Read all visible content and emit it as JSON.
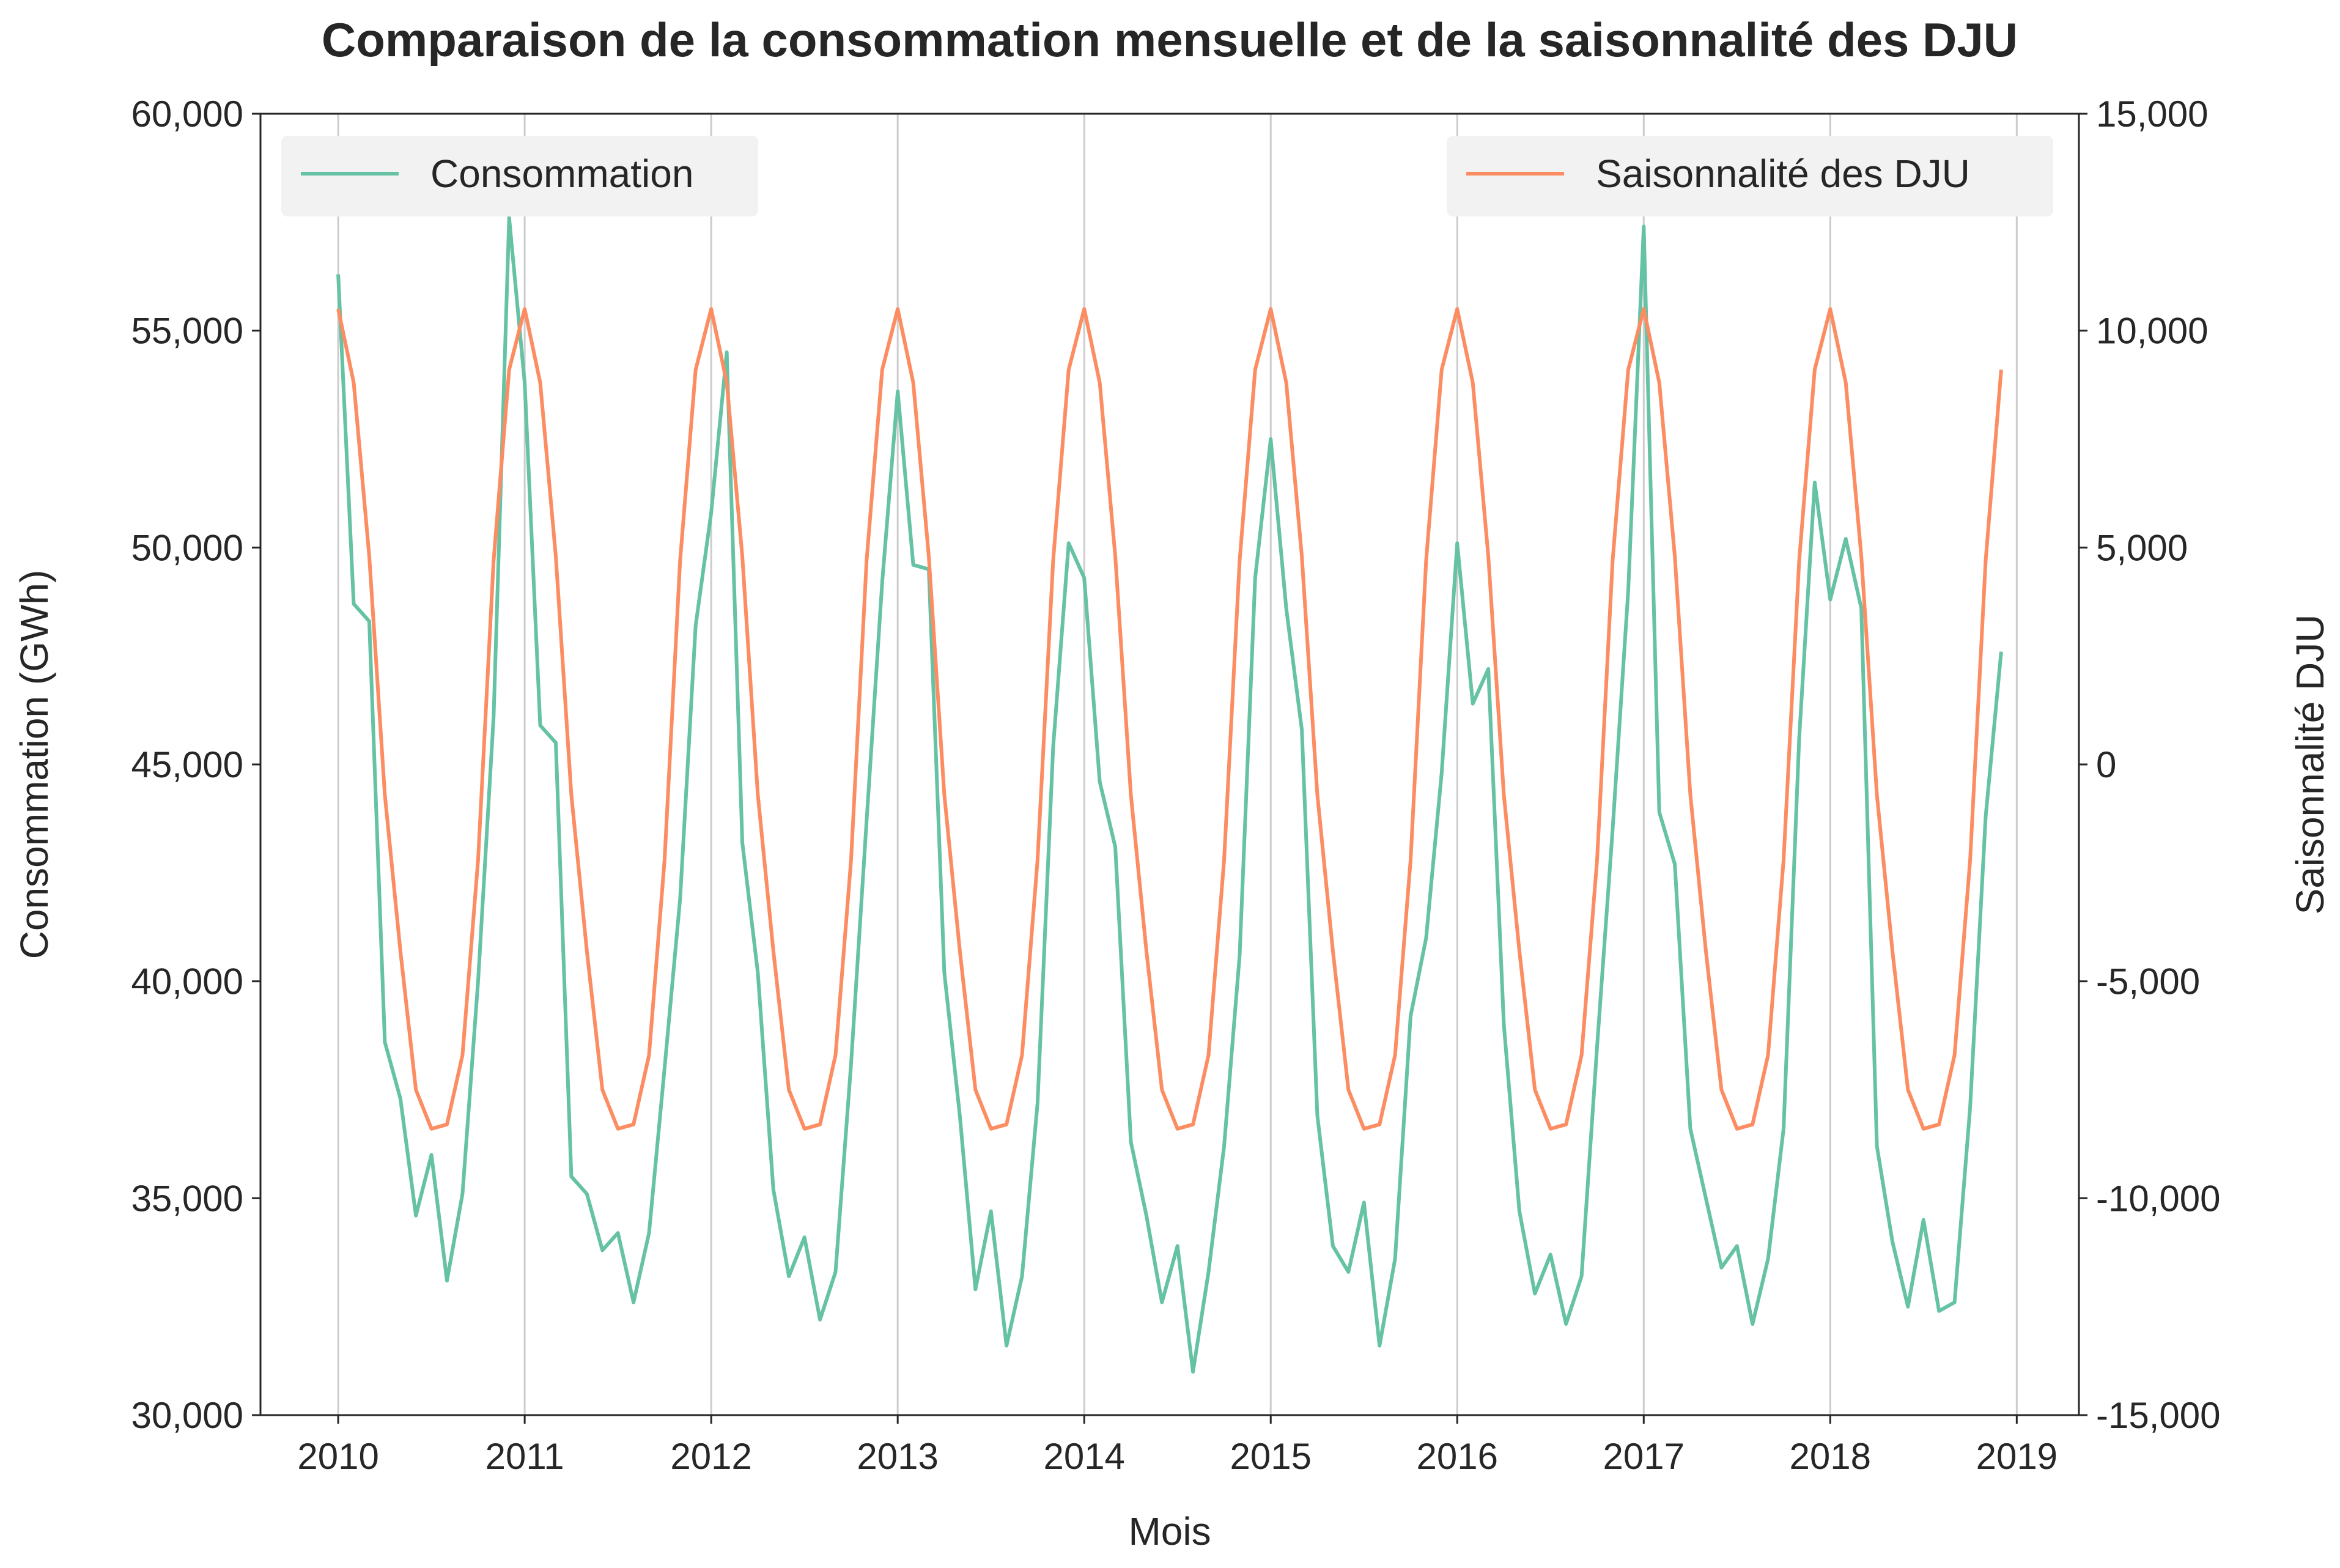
{
  "colors": {
    "consumption": "#66c2a5",
    "dju": "#fc8d62",
    "grid": "#cccccc",
    "axis": "#262626",
    "legend_bg": "#f2f2f2"
  },
  "chart_data": {
    "type": "line",
    "title": "Comparaison de la consommation mensuelle et de la saisonnalité des DJU",
    "xlabel": "Mois",
    "ylabel_left": "Consommation (GWh)",
    "ylabel_right": "Saisonnalité DJU",
    "x_ticks": [
      "2010",
      "2011",
      "2012",
      "2013",
      "2014",
      "2015",
      "2016",
      "2017",
      "2018",
      "2019"
    ],
    "y_left_ticks": [
      "30,000",
      "35,000",
      "40,000",
      "45,000",
      "50,000",
      "55,000",
      "60,000"
    ],
    "y_right_ticks": [
      "-15,000",
      "-10,000",
      "-5,000",
      "0",
      "5,000",
      "10,000",
      "15,000"
    ],
    "x_range": [
      "2009-08",
      "2019-05"
    ],
    "ylim_left": [
      30000,
      60000
    ],
    "ylim_right": [
      -15000,
      15000
    ],
    "grid": "vertical",
    "legend_left": "top-left",
    "legend_right": "top-right",
    "x_start": "2010-01",
    "x_step": "1 month",
    "series": [
      {
        "name": "Consommation",
        "axis": "left",
        "values": [
          56300,
          48700,
          48300,
          38600,
          37300,
          34600,
          36000,
          33100,
          35100,
          40000,
          46100,
          57600,
          53800,
          45900,
          45500,
          35500,
          35100,
          33800,
          34200,
          32600,
          34200,
          38000,
          41900,
          48200,
          50800,
          54500,
          43200,
          40200,
          35200,
          33200,
          34100,
          32200,
          33300,
          38100,
          43700,
          49200,
          53600,
          49600,
          49500,
          40200,
          36900,
          32900,
          34700,
          31600,
          33200,
          37200,
          45400,
          50100,
          49300,
          44600,
          43100,
          36300,
          34600,
          32600,
          33900,
          31000,
          33300,
          36200,
          40600,
          49300,
          52500,
          48600,
          45800,
          36900,
          33900,
          33300,
          34900,
          31600,
          33600,
          39200,
          41000,
          44800,
          50100,
          46400,
          47200,
          39000,
          34700,
          32800,
          33700,
          32100,
          33200,
          38500,
          43500,
          49000,
          57400,
          43900,
          42700,
          36600,
          35000,
          33400,
          33900,
          32100,
          33600,
          36600,
          45600,
          51500,
          48800,
          50200,
          48600,
          36200,
          34000,
          32500,
          34500,
          32400,
          32600,
          37100,
          43800,
          47600
        ]
      },
      {
        "name": "Saisonnalité des DJU",
        "axis": "right",
        "values": [
          10500,
          8800,
          4800,
          -700,
          -4300,
          -7500,
          -8400,
          -8300,
          -6700,
          -2200,
          4700,
          9100,
          10500,
          8800,
          4800,
          -700,
          -4300,
          -7500,
          -8400,
          -8300,
          -6700,
          -2200,
          4700,
          9100,
          10500,
          8800,
          4800,
          -700,
          -4300,
          -7500,
          -8400,
          -8300,
          -6700,
          -2200,
          4700,
          9100,
          10500,
          8800,
          4800,
          -700,
          -4300,
          -7500,
          -8400,
          -8300,
          -6700,
          -2200,
          4700,
          9100,
          10500,
          8800,
          4800,
          -700,
          -4300,
          -7500,
          -8400,
          -8300,
          -6700,
          -2200,
          4700,
          9100,
          10500,
          8800,
          4800,
          -700,
          -4300,
          -7500,
          -8400,
          -8300,
          -6700,
          -2200,
          4700,
          9100,
          10500,
          8800,
          4800,
          -700,
          -4300,
          -7500,
          -8400,
          -8300,
          -6700,
          -2200,
          4700,
          9100,
          10500,
          8800,
          4800,
          -700,
          -4300,
          -7500,
          -8400,
          -8300,
          -6700,
          -2200,
          4700,
          9100,
          10500,
          8800,
          4800,
          -700,
          -4300,
          -7500,
          -8400,
          -8300,
          -6700,
          -2200,
          4700,
          9100
        ]
      }
    ]
  }
}
